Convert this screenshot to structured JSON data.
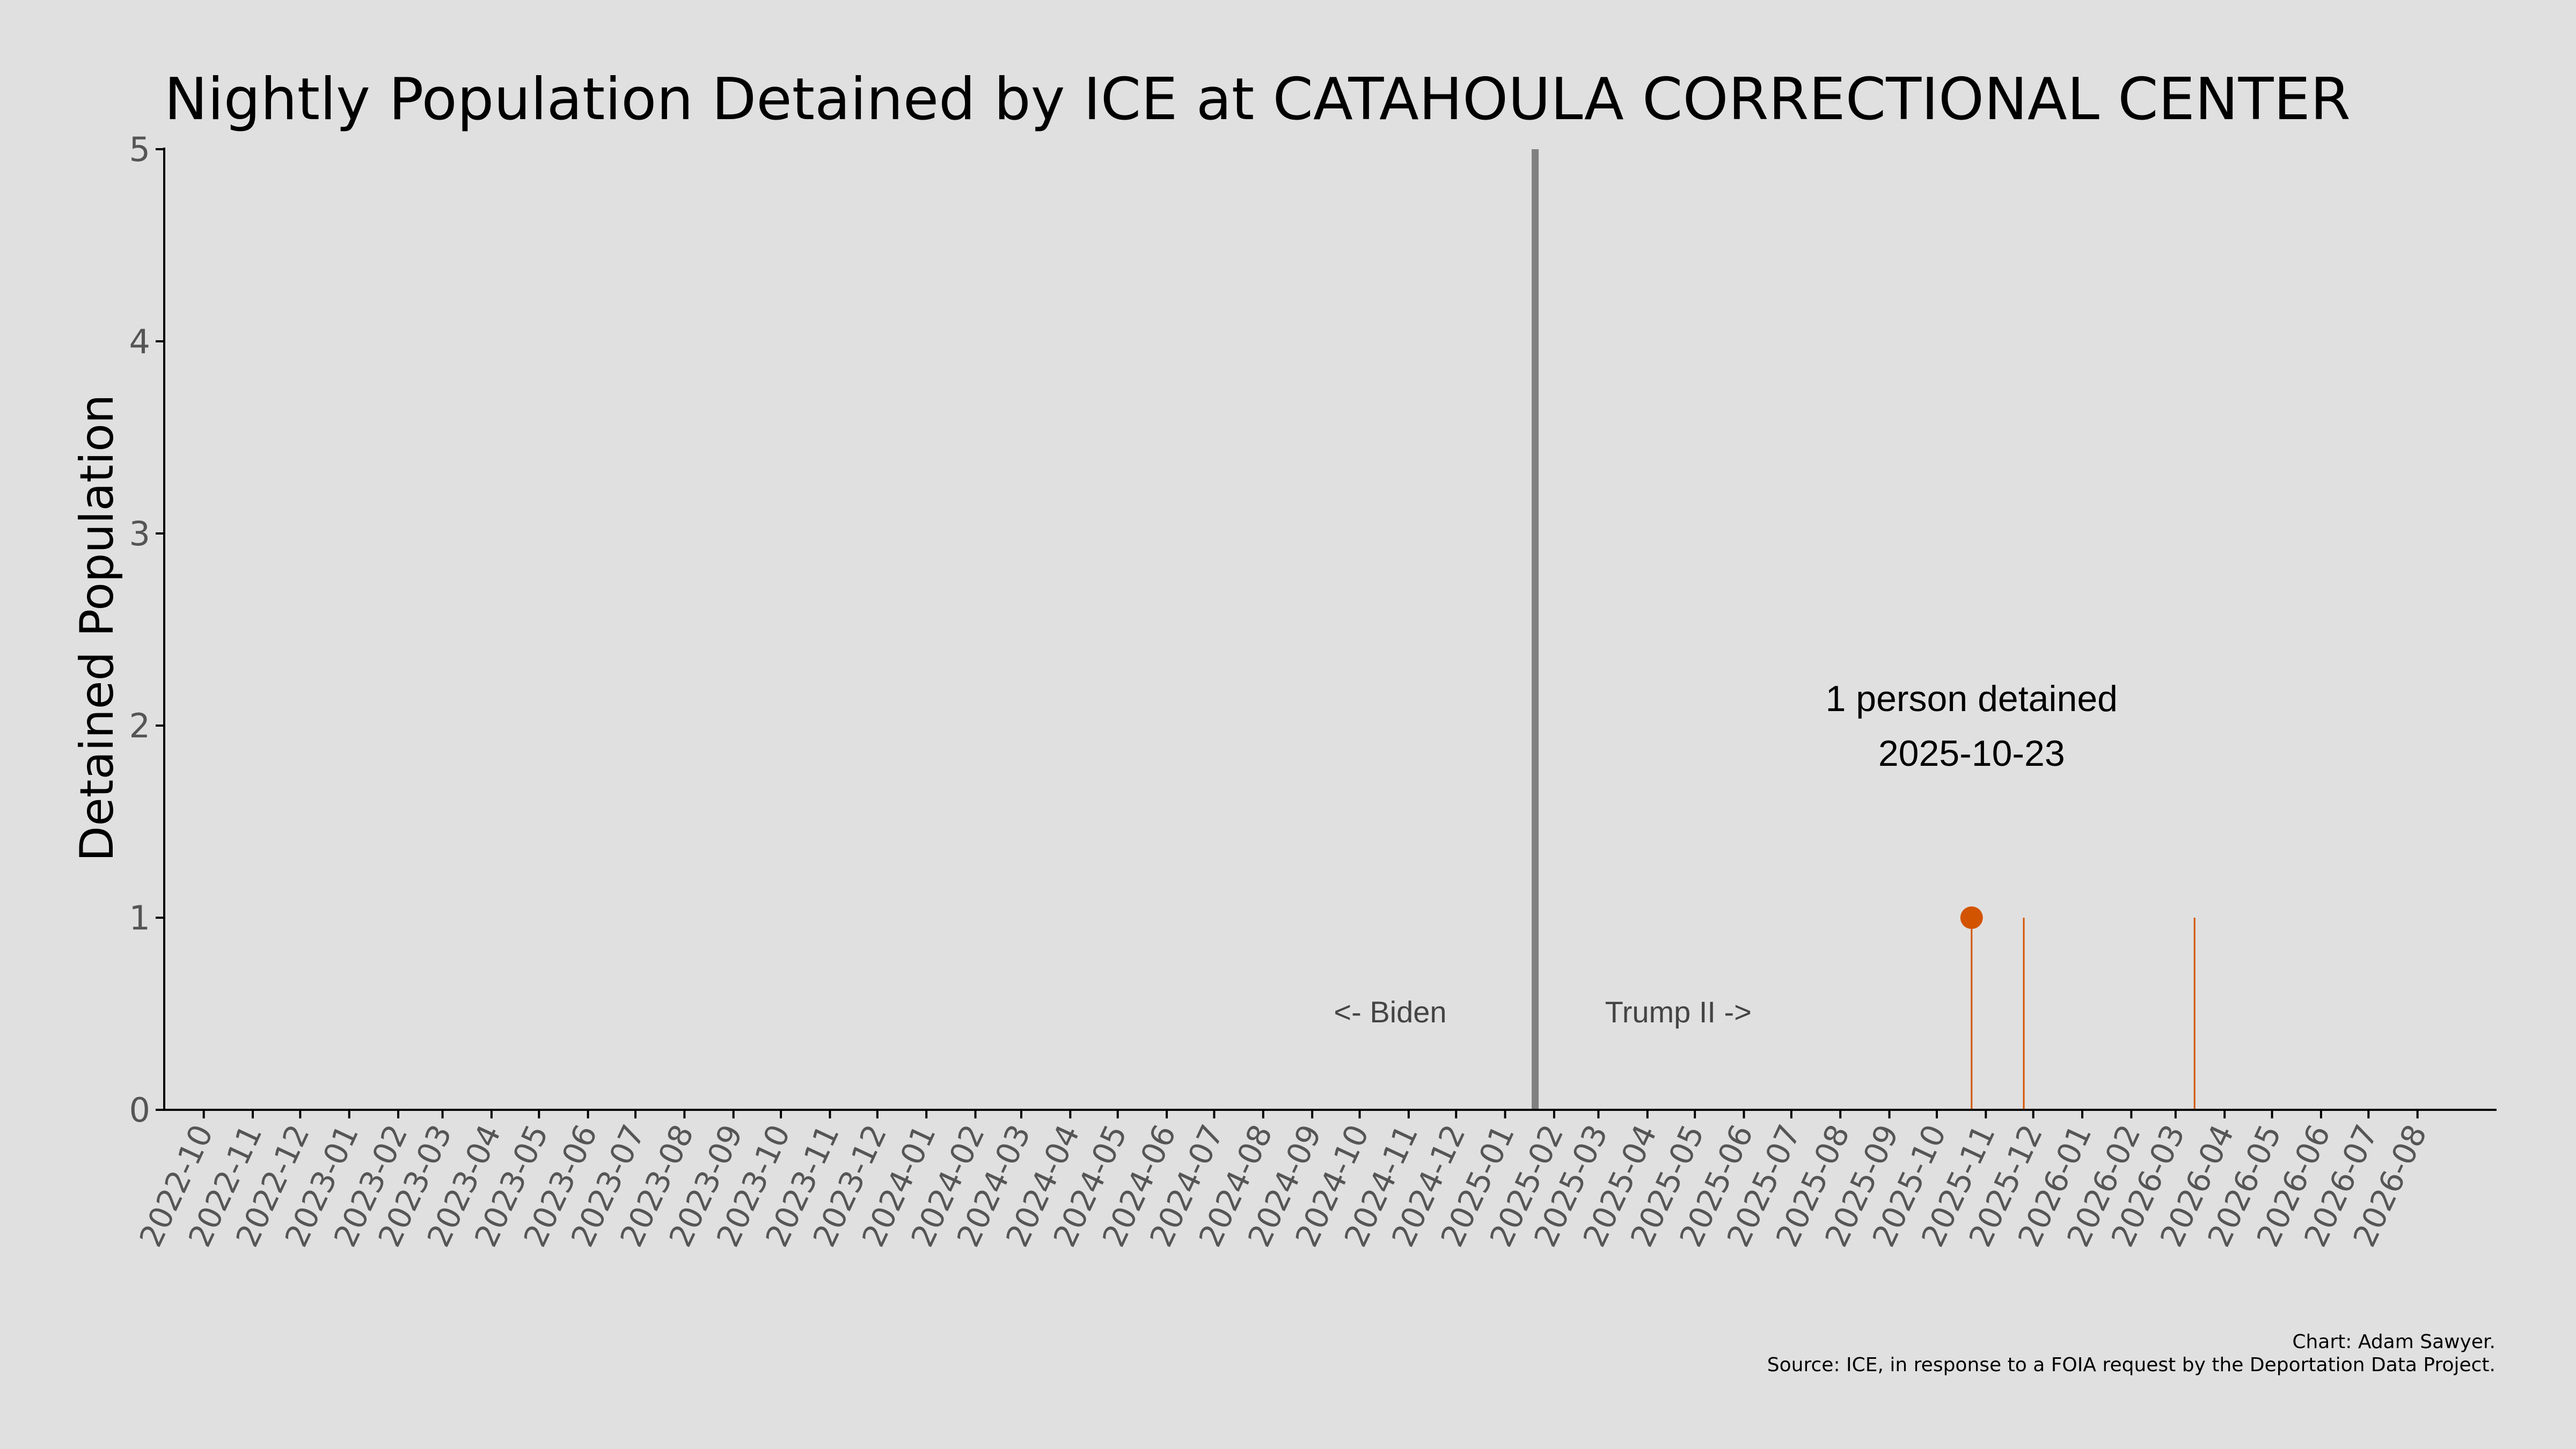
{
  "chart_data": {
    "type": "line",
    "title": "Nightly Population Detained by ICE at CATAHOULA CORRECTIONAL CENTER",
    "ylabel": "Detained Population",
    "xlabel": "",
    "ylim": [
      0,
      5
    ],
    "yticks": [
      0,
      1,
      2,
      3,
      4,
      5
    ],
    "xlim": [
      "2022-10-01",
      "2026-08-31"
    ],
    "xticks": [
      "2022-10",
      "2022-11",
      "2022-12",
      "2023-01",
      "2023-02",
      "2023-03",
      "2023-04",
      "2023-05",
      "2023-06",
      "2023-07",
      "2023-08",
      "2023-09",
      "2023-10",
      "2023-11",
      "2023-12",
      "2024-01",
      "2024-02",
      "2024-03",
      "2024-04",
      "2024-05",
      "2024-06",
      "2024-07",
      "2024-08",
      "2024-09",
      "2024-10",
      "2024-11",
      "2024-12",
      "2025-01",
      "2025-02",
      "2025-03",
      "2025-04",
      "2025-05",
      "2025-06",
      "2025-07",
      "2025-08",
      "2025-09",
      "2025-10",
      "2025-11",
      "2025-12",
      "2026-01",
      "2026-02",
      "2026-03",
      "2026-04",
      "2026-05",
      "2026-06",
      "2026-07",
      "2026-08"
    ],
    "series": [
      {
        "color": "#d35400",
        "points": [
          {
            "x": "2025-10-23",
            "y": 1
          },
          {
            "x": "2025-11-25",
            "y": 1
          },
          {
            "x": "2026-03-13",
            "y": 1
          }
        ]
      }
    ],
    "highlight": {
      "x": "2025-10-23",
      "y": 1,
      "label_line1": "1 person detained",
      "label_line2": "2025-10-23"
    },
    "divider": {
      "x": "2025-01-20",
      "color": "#808080",
      "left_label": "<- Biden",
      "right_label": "Trump II ->"
    },
    "grid": false,
    "credit_line1": "Chart: Adam Sawyer.",
    "credit_line2": "Source: ICE, in response to a FOIA request by the Deportation Data Project."
  }
}
